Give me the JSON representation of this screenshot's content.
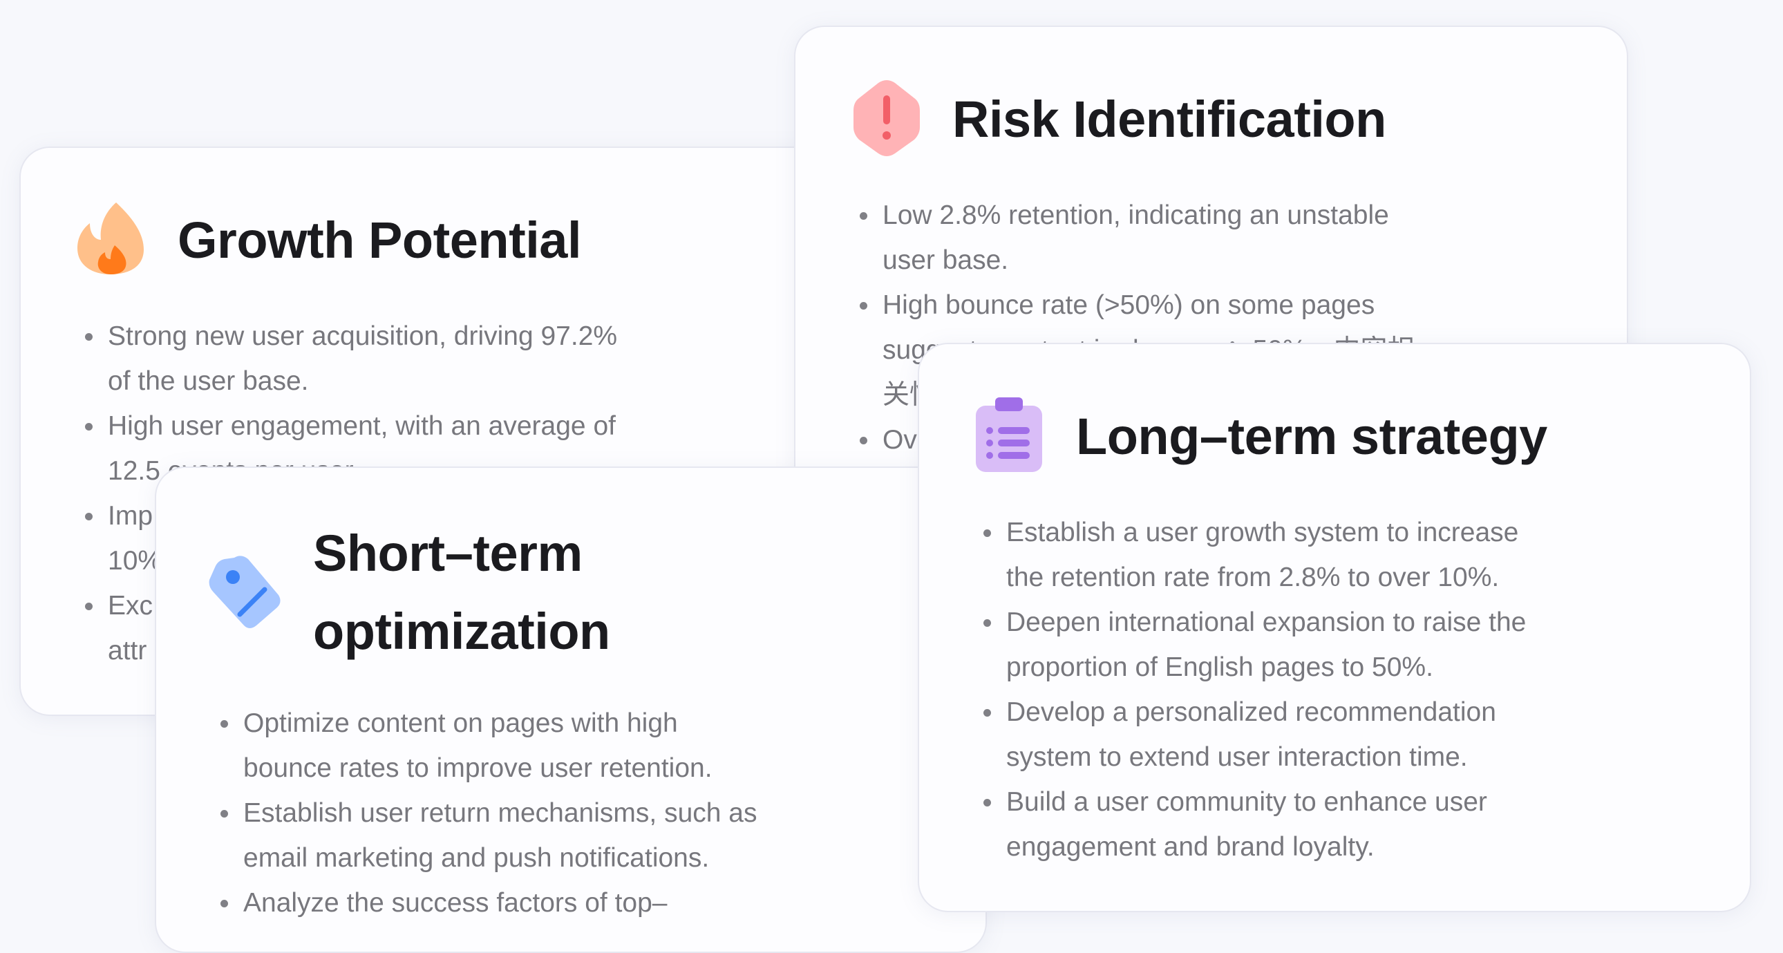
{
  "colors": {
    "title": "#1b1b1f",
    "body": "#77777d",
    "flame": "#ffc08a",
    "flame_core": "#ff7a1a",
    "risk": "#ffb3b6",
    "risk_mark": "#f25f68",
    "tag": "#a6c6ff",
    "tag_mark": "#3b82f6",
    "clipboard": "#d9bdf7",
    "clipboard_mark": "#a06ee8"
  },
  "cards": [
    {
      "id": "growth",
      "icon": "flame-icon",
      "title_lines": [
        "Growth Potential"
      ],
      "items": [
        {
          "lines": [
            "Strong new user acquisition, driving 97.2%",
            "of the user base."
          ]
        },
        {
          "lines": [
            "High user engagement, with an average of",
            "12.5 events per user."
          ]
        },
        {
          "lines": [
            " Imp",
            "10%"
          ]
        },
        {
          "lines": [
            "Exc",
            "attr"
          ]
        }
      ]
    },
    {
      "id": "risk",
      "icon": "warning-hexagon-icon",
      "title_lines": [
        "Risk Identification"
      ],
      "items": [
        {
          "lines": [
            "Low 2.8% retention, indicating an unstable",
            "user base."
          ]
        },
        {
          "lines": [
            "High bounce rate (>50%) on some pages",
            "suggests content irrelevance：50%，内容相",
            "关性"
          ]
        },
        {
          "lines": [
            "Ov"
          ]
        }
      ]
    },
    {
      "id": "short",
      "icon": "tag-icon",
      "title_lines": [
        "Short–term",
        "optimization"
      ],
      "items": [
        {
          "lines": [
            "Optimize content on pages with high",
            "bounce rates to improve user retention."
          ]
        },
        {
          "lines": [
            "Establish user return mechanisms, such as",
            "email marketing and push notifications."
          ]
        },
        {
          "lines": [
            "Analyze the success factors of top–"
          ]
        }
      ]
    },
    {
      "id": "long",
      "icon": "clipboard-list-icon",
      "title_lines": [
        "Long–term strategy"
      ],
      "items": [
        {
          "lines": [
            "Establish a user growth system to increase",
            "the retention rate from 2.8% to over 10%."
          ]
        },
        {
          "lines": [
            "Deepen international expansion to raise the",
            "proportion of English pages to 50%."
          ]
        },
        {
          "lines": [
            "Develop a personalized recommendation",
            "system to extend user interaction time."
          ]
        },
        {
          "lines": [
            "Build a user community to enhance user",
            "engagement and brand loyalty."
          ]
        }
      ]
    }
  ]
}
